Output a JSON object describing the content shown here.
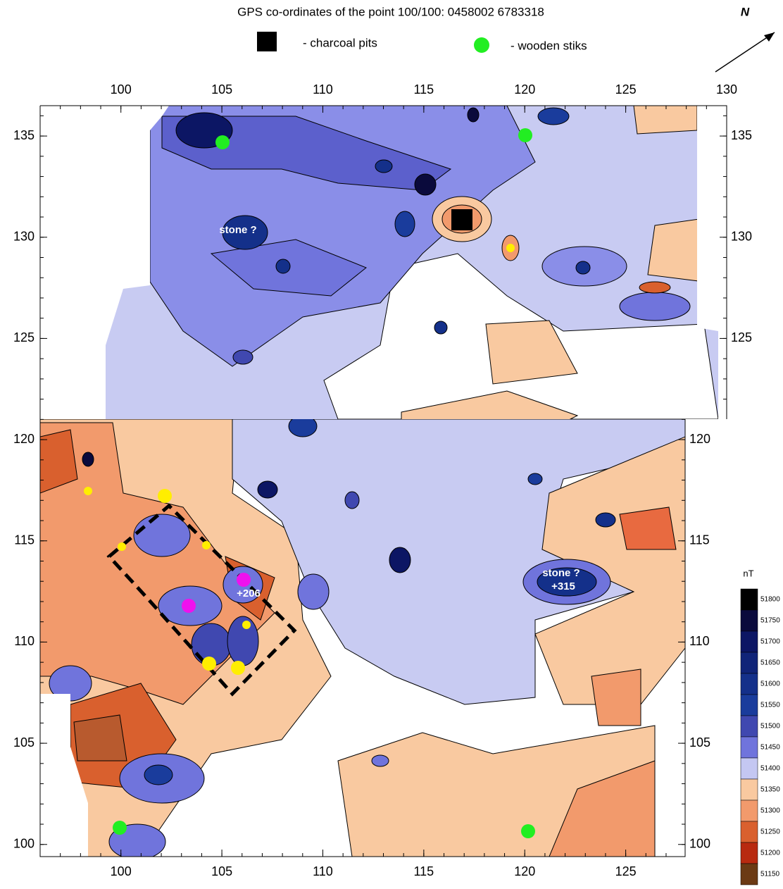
{
  "header": {
    "title": "GPS co-ordinates of the point 100/100: 0458002  6783318",
    "north": "N"
  },
  "legend": {
    "items": [
      {
        "label": "- charcoal pits"
      },
      {
        "label": "- wooden stiks"
      }
    ]
  },
  "map": {
    "xlim": [
      96,
      130
    ],
    "ylim": [
      99.4,
      136.5
    ],
    "xticks_top": [
      100,
      105,
      110,
      115,
      120,
      125,
      130
    ],
    "xticks_bottom": [
      100,
      105,
      110,
      115,
      120,
      125
    ],
    "yticks_left": [
      100,
      105,
      110,
      115,
      120,
      125,
      130,
      135
    ],
    "yticks_right_upper": [
      125,
      130,
      135
    ],
    "yticks_right_lower": [
      100,
      105,
      110,
      115,
      120
    ],
    "annotations": [
      "stone ?",
      "stone ?",
      "+206",
      "+315"
    ]
  },
  "colorbar": {
    "unit": "nT",
    "levels": [
      51800,
      51750,
      51700,
      51650,
      51600,
      51550,
      51500,
      51450,
      51400,
      51350,
      51300,
      51250,
      51200,
      51150
    ],
    "colors": [
      "#000000",
      "#0a0a3c",
      "#0c1664",
      "#102478",
      "#14308a",
      "#1a3c9c",
      "#4048b0",
      "#7074dc",
      "#c4c7f2",
      "#f9c9a0",
      "#f29a6c",
      "#d9602e",
      "#b82a10",
      "#6b3a14"
    ]
  }
}
